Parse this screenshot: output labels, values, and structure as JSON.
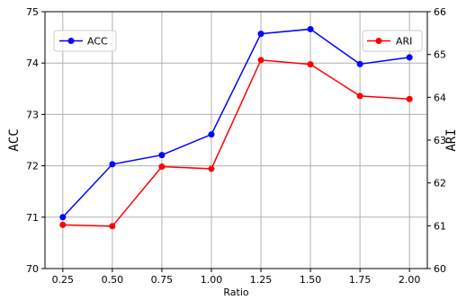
{
  "chart_data": {
    "type": "line",
    "x": [
      0.25,
      0.5,
      0.75,
      1.0,
      1.25,
      1.5,
      1.75,
      2.0
    ],
    "x_tick_labels": [
      "0.25",
      "0.50",
      "0.75",
      "1.00",
      "1.25",
      "1.50",
      "1.75",
      "2.00"
    ],
    "xlabel": "Ratio",
    "xlim": [
      0.16,
      2.09
    ],
    "left_axis": {
      "label": "ACC",
      "ylim": [
        70,
        75
      ],
      "ticks": [
        70,
        71,
        72,
        73,
        74,
        75
      ],
      "tick_labels": [
        "70",
        "71",
        "72",
        "73",
        "74",
        "75"
      ]
    },
    "right_axis": {
      "label": "ARI",
      "ylim": [
        60,
        66
      ],
      "ticks": [
        60,
        61,
        62,
        63,
        64,
        65,
        66
      ],
      "tick_labels": [
        "60",
        "61",
        "62",
        "63",
        "64",
        "65",
        "66"
      ]
    },
    "series": [
      {
        "name": "ACC",
        "axis": "left",
        "color": "#0000ff",
        "values": [
          71.0,
          72.03,
          72.21,
          72.61,
          74.57,
          74.66,
          73.98,
          74.11
        ]
      },
      {
        "name": "ARI",
        "axis": "right",
        "color": "#ff0000",
        "values": [
          61.02,
          60.99,
          62.38,
          62.33,
          64.87,
          64.77,
          64.03,
          63.96
        ]
      }
    ],
    "legends": [
      {
        "series": "ACC",
        "position": "upper-left"
      },
      {
        "series": "ARI",
        "position": "upper-right"
      }
    ],
    "grid": true
  }
}
